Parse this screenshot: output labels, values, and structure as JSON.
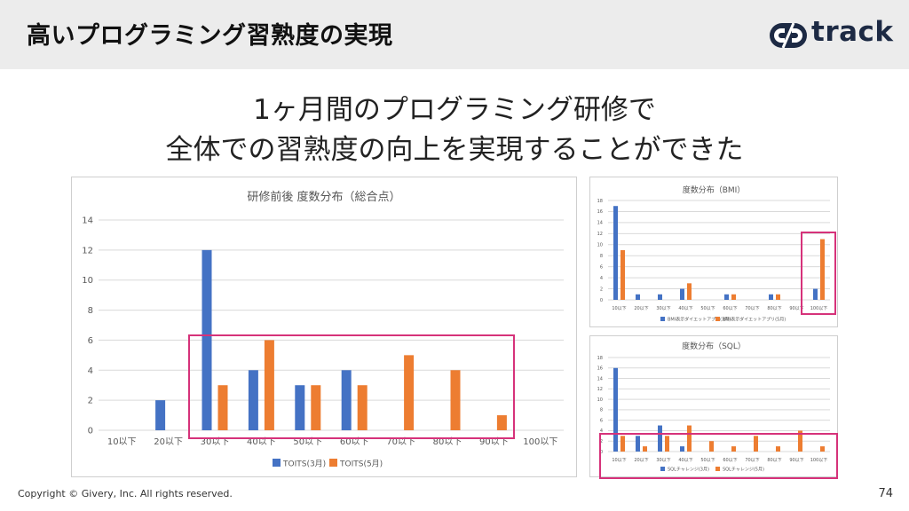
{
  "header": {
    "title": "高いプログラミング習熟度の実現",
    "logo_text": "track"
  },
  "headline": {
    "line1": "1ヶ月間のプログラミング研修で",
    "line2": "全体での習熟度の向上を実現することができた"
  },
  "footer": {
    "copyright": "Copyright © Givery, Inc. All rights reserved.",
    "page_number": "74"
  },
  "colors": {
    "series_blue": "#4472c4",
    "series_orange": "#ed7d31",
    "highlight": "#d6327a",
    "header_bg": "#ececec"
  },
  "chart_data": [
    {
      "type": "bar",
      "title": "研修前後 度数分布（総合点）",
      "categories": [
        "10以下",
        "20以下",
        "30以下",
        "40以下",
        "50以下",
        "60以下",
        "70以下",
        "80以下",
        "90以下",
        "100以下"
      ],
      "series": [
        {
          "name": "TOITS(3月)",
          "values": [
            0,
            2,
            12,
            4,
            3,
            4,
            0,
            0,
            0,
            0
          ]
        },
        {
          "name": "TOITS(5月)",
          "values": [
            0,
            0,
            3,
            6,
            3,
            3,
            5,
            4,
            1,
            0
          ]
        }
      ],
      "yticks": [
        0,
        2,
        4,
        6,
        8,
        10,
        12,
        14
      ],
      "ylim": [
        0,
        14
      ],
      "grid": true,
      "legend": "bottom"
    },
    {
      "type": "bar",
      "title": "度数分布（BMI）",
      "categories": [
        "10以下",
        "20以下",
        "30以下",
        "40以下",
        "50以下",
        "60以下",
        "70以下",
        "80以下",
        "90以下",
        "100以下"
      ],
      "series": [
        {
          "name": "BMI表示ダイエットアプリ(3月)",
          "values": [
            17,
            1,
            1,
            2,
            0,
            1,
            0,
            1,
            0,
            2
          ]
        },
        {
          "name": "BMI表示ダイエットアプリ(5月)",
          "values": [
            9,
            0,
            0,
            3,
            0,
            1,
            0,
            1,
            0,
            11
          ]
        }
      ],
      "yticks": [
        0,
        2,
        4,
        6,
        8,
        10,
        12,
        14,
        16,
        18
      ],
      "ylim": [
        0,
        18
      ],
      "grid": true,
      "legend": "bottom"
    },
    {
      "type": "bar",
      "title": "度数分布（SQL）",
      "categories": [
        "10以下",
        "20以下",
        "30以下",
        "40以下",
        "50以下",
        "60以下",
        "70以下",
        "80以下",
        "90以下",
        "100以下"
      ],
      "series": [
        {
          "name": "SQLチャレンジ(3月)",
          "values": [
            16,
            3,
            5,
            1,
            0,
            0,
            0,
            0,
            0,
            0
          ]
        },
        {
          "name": "SQLチャレンジ(5月)",
          "values": [
            3,
            1,
            3,
            5,
            2,
            1,
            3,
            1,
            4,
            1
          ]
        }
      ],
      "yticks": [
        0,
        2,
        4,
        6,
        8,
        10,
        12,
        14,
        16,
        18
      ],
      "ylim": [
        0,
        18
      ],
      "grid": true,
      "legend": "bottom"
    }
  ]
}
